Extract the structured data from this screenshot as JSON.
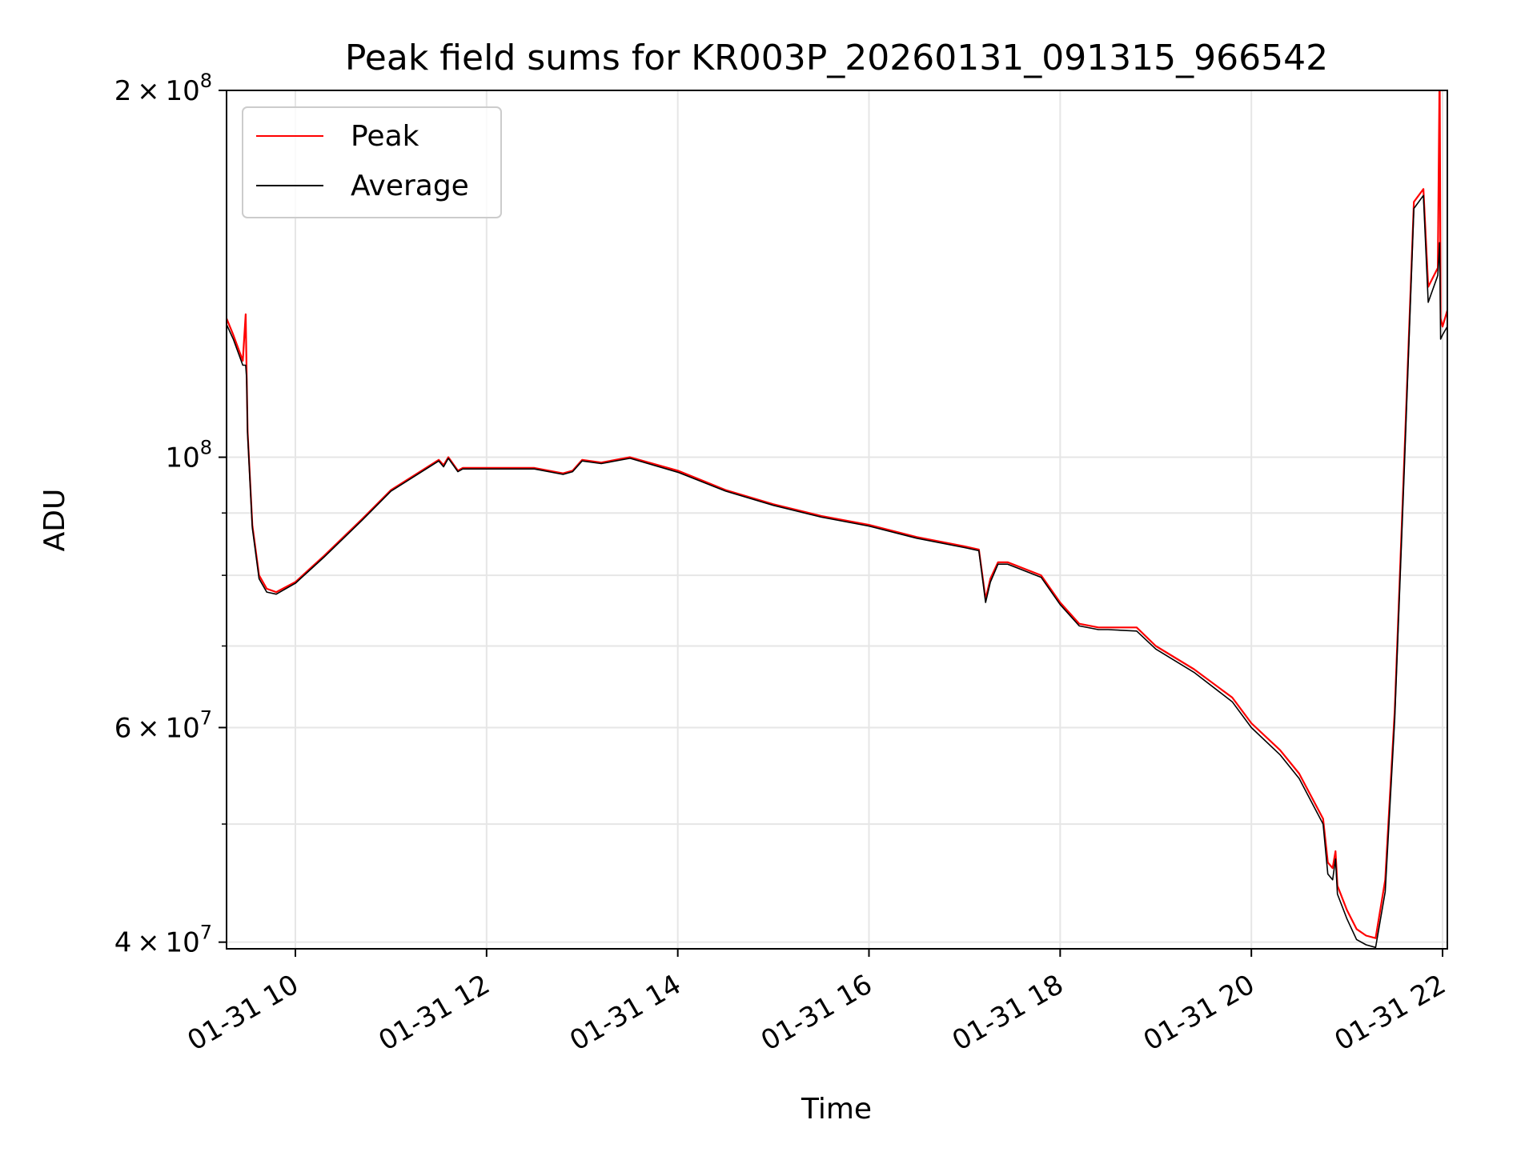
{
  "chart_data": {
    "type": "line",
    "title": "Peak field sums for KR003P_20260131_091315_966542",
    "xlabel": "Time",
    "ylabel": "ADU",
    "yscale": "log",
    "ylim": [
      39500000,
      200000000
    ],
    "xlim": [
      9.28,
      22.05
    ],
    "grid": true,
    "legend_position": "upper-left",
    "x_ticks": [
      {
        "value": 10,
        "label": "01-31 10"
      },
      {
        "value": 12,
        "label": "01-31 12"
      },
      {
        "value": 14,
        "label": "01-31 14"
      },
      {
        "value": 16,
        "label": "01-31 16"
      },
      {
        "value": 18,
        "label": "01-31 18"
      },
      {
        "value": 20,
        "label": "01-31 20"
      },
      {
        "value": 22,
        "label": "01-31 22"
      }
    ],
    "y_major_ticks": [
      {
        "value": 40000000,
        "mantissa": "4",
        "exponent": "7"
      },
      {
        "value": 60000000,
        "mantissa": "6",
        "exponent": "7"
      },
      {
        "value": 100000000,
        "mantissa": "",
        "exponent": "8"
      },
      {
        "value": 200000000,
        "mantissa": "2",
        "exponent": "8"
      }
    ],
    "y_minor_ticks": [
      50000000,
      70000000,
      80000000,
      90000000
    ],
    "colors": {
      "peak": "#ff0000",
      "average": "#000000",
      "grid": "#e6e6e6"
    },
    "series": [
      {
        "name": "Peak",
        "color": "#ff0000",
        "x": [
          9.28,
          9.35,
          9.45,
          9.48,
          9.49,
          9.5,
          9.55,
          9.62,
          9.7,
          9.8,
          10.0,
          10.3,
          10.7,
          11.0,
          11.5,
          11.55,
          11.6,
          11.7,
          11.75,
          12.0,
          12.5,
          12.8,
          12.9,
          13.0,
          13.2,
          13.5,
          14.0,
          14.5,
          15.0,
          15.5,
          16.0,
          16.5,
          17.0,
          17.15,
          17.22,
          17.27,
          17.35,
          17.45,
          17.8,
          18.0,
          18.2,
          18.4,
          18.5,
          18.8,
          19.0,
          19.4,
          19.8,
          20.0,
          20.3,
          20.5,
          20.75,
          20.8,
          20.85,
          20.88,
          20.9,
          21.0,
          21.1,
          21.2,
          21.3,
          21.4,
          21.5,
          21.6,
          21.7,
          21.8,
          21.85,
          21.95,
          21.97,
          21.98,
          22.0,
          22.05
        ],
        "values": [
          130000000,
          126000000,
          120000000,
          131000000,
          117000000,
          105000000,
          88000000,
          80000000,
          78000000,
          77500000,
          79000000,
          83000000,
          89000000,
          94000000,
          99500000,
          98500000,
          100000000,
          97500000,
          98000000,
          98000000,
          98000000,
          97000000,
          97500000,
          99500000,
          99000000,
          100000000,
          97500000,
          94000000,
          91500000,
          89500000,
          88000000,
          86000000,
          84500000,
          84000000,
          76500000,
          79500000,
          82000000,
          82000000,
          80000000,
          76000000,
          73000000,
          72500000,
          72500000,
          72500000,
          70000000,
          67000000,
          63500000,
          60500000,
          57500000,
          55000000,
          50500000,
          46500000,
          46000000,
          47500000,
          44500000,
          42500000,
          41000000,
          40500000,
          40300000,
          45000000,
          62000000,
          100000000,
          162000000,
          166000000,
          138000000,
          143000000,
          210000000,
          130000000,
          128000000,
          132000000
        ]
      },
      {
        "name": "Average",
        "color": "#000000",
        "x": [
          9.28,
          9.35,
          9.45,
          9.48,
          9.49,
          9.5,
          9.55,
          9.62,
          9.7,
          9.8,
          10.0,
          10.3,
          10.7,
          11.0,
          11.5,
          11.55,
          11.6,
          11.7,
          11.75,
          12.0,
          12.5,
          12.8,
          12.9,
          13.0,
          13.2,
          13.5,
          14.0,
          14.5,
          15.0,
          15.5,
          16.0,
          16.5,
          17.0,
          17.15,
          17.22,
          17.27,
          17.35,
          17.45,
          17.8,
          18.0,
          18.2,
          18.4,
          18.5,
          18.8,
          19.0,
          19.4,
          19.8,
          20.0,
          20.3,
          20.5,
          20.75,
          20.8,
          20.85,
          20.88,
          20.9,
          21.0,
          21.1,
          21.2,
          21.3,
          21.4,
          21.5,
          21.6,
          21.7,
          21.8,
          21.85,
          21.95,
          21.97,
          21.98,
          22.0,
          22.05
        ],
        "values": [
          128500000,
          125000000,
          119000000,
          119000000,
          116000000,
          104500000,
          87500000,
          79500000,
          77500000,
          77200000,
          78800000,
          82800000,
          88800000,
          93800000,
          99300000,
          98200000,
          99800000,
          97300000,
          97800000,
          97800000,
          97800000,
          96800000,
          97300000,
          99300000,
          98800000,
          99800000,
          97200000,
          93800000,
          91300000,
          89300000,
          87800000,
          85800000,
          84300000,
          83800000,
          76000000,
          79000000,
          81700000,
          81700000,
          79700000,
          75700000,
          72700000,
          72200000,
          72200000,
          72000000,
          69600000,
          66600000,
          63000000,
          60000000,
          57000000,
          54500000,
          50000000,
          45500000,
          45000000,
          46800000,
          43800000,
          41800000,
          40200000,
          39800000,
          39600000,
          44000000,
          61000000,
          98000000,
          160000000,
          164000000,
          134000000,
          141000000,
          150000000,
          125000000,
          126000000,
          128000000
        ]
      }
    ]
  }
}
